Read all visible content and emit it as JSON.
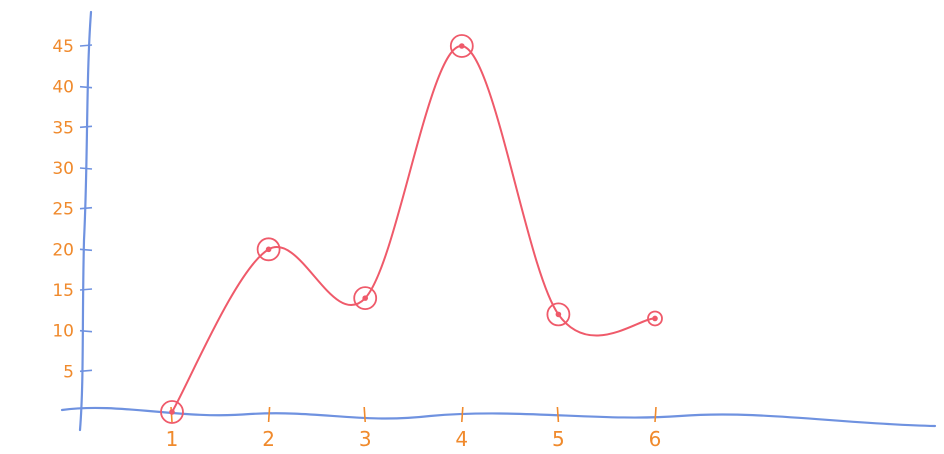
{
  "chart_data": {
    "type": "line",
    "title": "",
    "xlabel": "",
    "ylabel": "",
    "x": [
      1,
      2,
      3,
      4,
      5,
      6
    ],
    "series": [
      {
        "values": [
          0,
          20,
          14,
          45,
          12,
          11.5
        ]
      }
    ],
    "x_tick_labels": [
      "1",
      "2",
      "3",
      "4",
      "5",
      "6"
    ],
    "y_tick_labels": [
      "5",
      "10",
      "15",
      "20",
      "25",
      "30",
      "35",
      "40",
      "45"
    ],
    "ylim": [
      0,
      45
    ],
    "grid": false,
    "style": "hand-drawn",
    "colors": {
      "axis": "#6f92e0",
      "line": "#ef5a6a",
      "ticks": "#f08a2c"
    }
  }
}
